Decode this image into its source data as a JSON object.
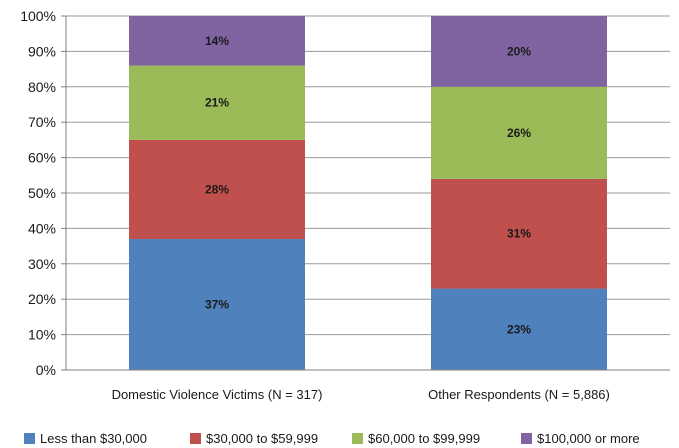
{
  "chart_data": {
    "type": "bar",
    "stacked": true,
    "categories": [
      "Domestic Violence Victims  (N = 317)",
      "Other Respondents  (N = 5,886)"
    ],
    "series": [
      {
        "name": "Less than $30,000",
        "color": "#4F81BD",
        "values": [
          37,
          23
        ],
        "labels": [
          "37%",
          "23%"
        ]
      },
      {
        "name": "$30,000 to $59,999",
        "color": "#C0504D",
        "values": [
          28,
          31
        ],
        "labels": [
          "28%",
          "31%"
        ]
      },
      {
        "name": "$60,000 to $99,999",
        "color": "#9BBB59",
        "values": [
          21,
          26
        ],
        "labels": [
          "21%",
          "26%"
        ]
      },
      {
        "name": "$100,000 or more",
        "color": "#8064A2",
        "values": [
          14,
          20
        ],
        "labels": [
          "14%",
          "20%"
        ]
      }
    ],
    "ylim": [
      0,
      100
    ],
    "yticks": [
      "0%",
      "10%",
      "20%",
      "30%",
      "40%",
      "50%",
      "60%",
      "70%",
      "80%",
      "90%",
      "100%"
    ],
    "grid": true,
    "legend_position": "bottom"
  }
}
